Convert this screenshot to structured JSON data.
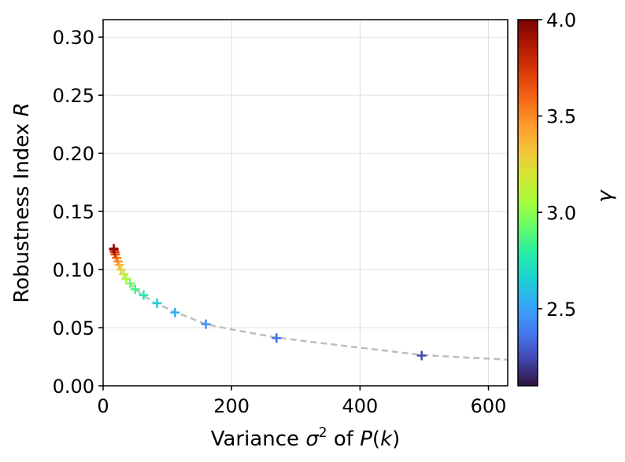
{
  "chart_data": {
    "type": "scatter",
    "title": "",
    "xlabel_parts": [
      "Variance ",
      "σ",
      "2",
      " of ",
      "P",
      "(",
      "k",
      ")"
    ],
    "ylabel_parts": [
      "Robustness Index ",
      "R"
    ],
    "xlim": [
      0,
      630
    ],
    "ylim": [
      0,
      0.315
    ],
    "xticks": [
      0,
      200,
      400,
      600
    ],
    "xtick_labels": [
      "0",
      "200",
      "400",
      "600"
    ],
    "yticks": [
      0,
      0.05,
      0.1,
      0.15,
      0.2,
      0.25,
      0.3
    ],
    "ytick_labels": [
      "0.00",
      "0.05",
      "0.10",
      "0.15",
      "0.20",
      "0.25",
      "0.30"
    ],
    "grid": true,
    "marker": "+",
    "colorbar": {
      "label": "γ",
      "range": [
        2.1,
        4.0
      ],
      "ticks": [
        2.5,
        3.0,
        3.5,
        4.0
      ],
      "tick_labels": [
        "2.5",
        "3.0",
        "3.5",
        "4.0"
      ],
      "colormap": "turbo"
    },
    "points": [
      {
        "x": 496,
        "y": 0.026,
        "gamma": 2.25
      },
      {
        "x": 270,
        "y": 0.041,
        "gamma": 2.35
      },
      {
        "x": 160,
        "y": 0.053,
        "gamma": 2.45
      },
      {
        "x": 112,
        "y": 0.063,
        "gamma": 2.55
      },
      {
        "x": 84,
        "y": 0.071,
        "gamma": 2.65
      },
      {
        "x": 63,
        "y": 0.078,
        "gamma": 2.75
      },
      {
        "x": 50,
        "y": 0.083,
        "gamma": 2.85
      },
      {
        "x": 42,
        "y": 0.088,
        "gamma": 2.95
      },
      {
        "x": 36,
        "y": 0.092,
        "gamma": 3.05
      },
      {
        "x": 32,
        "y": 0.096,
        "gamma": 3.15
      },
      {
        "x": 28,
        "y": 0.1,
        "gamma": 3.25
      },
      {
        "x": 25,
        "y": 0.104,
        "gamma": 3.35
      },
      {
        "x": 23,
        "y": 0.107,
        "gamma": 3.45
      },
      {
        "x": 21,
        "y": 0.11,
        "gamma": 3.55
      },
      {
        "x": 19,
        "y": 0.113,
        "gamma": 3.65
      },
      {
        "x": 18,
        "y": 0.115,
        "gamma": 3.75
      },
      {
        "x": 17,
        "y": 0.117,
        "gamma": 3.85
      },
      {
        "x": 16.5,
        "y": 0.118,
        "gamma": 3.95
      }
    ],
    "fit_curve": {
      "style": "dashed",
      "color": "#bdbdbd",
      "points": [
        [
          40,
          0.0885
        ],
        [
          60,
          0.0785
        ],
        [
          80,
          0.0715
        ],
        [
          110,
          0.064
        ],
        [
          160,
          0.053
        ],
        [
          200,
          0.0485
        ],
        [
          270,
          0.0415
        ],
        [
          350,
          0.036
        ],
        [
          420,
          0.0315
        ],
        [
          496,
          0.0265
        ],
        [
          560,
          0.0245
        ],
        [
          630,
          0.0225
        ]
      ]
    }
  }
}
